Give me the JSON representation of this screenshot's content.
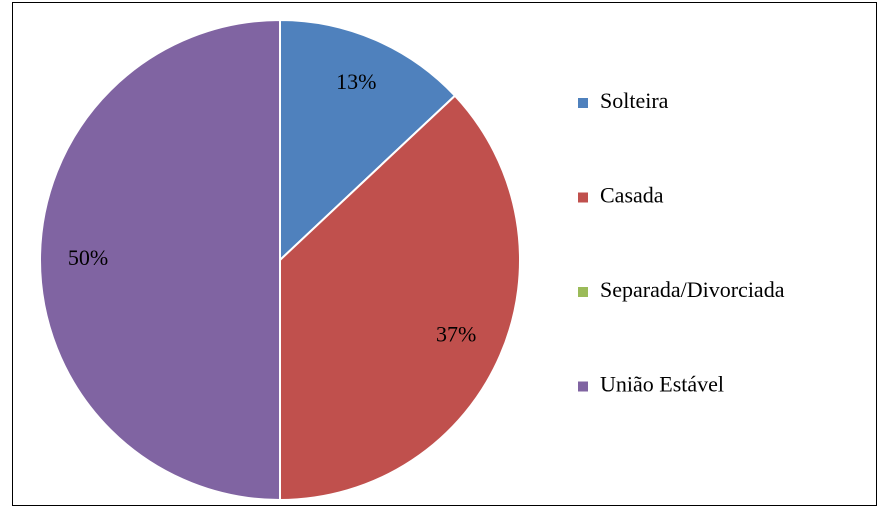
{
  "chart_data": {
    "type": "pie",
    "categories": [
      "Solteira",
      "Casada",
      "Separada/Divorciada",
      "União Estável"
    ],
    "values": [
      13,
      37,
      0,
      50
    ],
    "value_labels": [
      "13%",
      "37%",
      null,
      "50%"
    ],
    "colors": [
      "#4f81bd",
      "#c0504d",
      "#9bbb59",
      "#8064a2"
    ],
    "legend": "right"
  }
}
